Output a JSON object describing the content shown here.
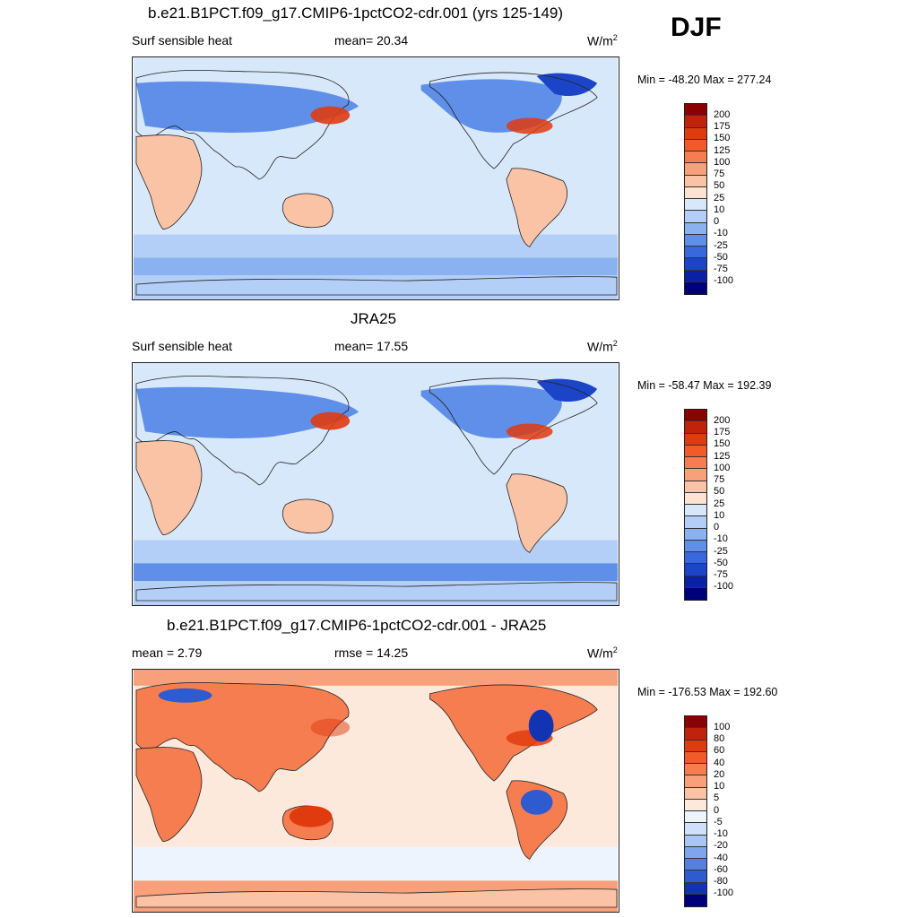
{
  "season": "DJF",
  "panels": [
    {
      "title": "b.e21.B1PCT.f09_g17.CMIP6-1pctCO2-cdr.001 (yrs 125-149)",
      "left_label": "Surf sensible heat",
      "center_label": "mean=  20.34",
      "units": "W/m",
      "units_sup": "2",
      "minmax": "Min = -48.20 Max = 277.24",
      "colorbar": {
        "labels": [
          "200",
          "175",
          "150",
          "125",
          "100",
          "75",
          "50",
          "25",
          "10",
          "0",
          "-10",
          "-25",
          "-50",
          "-75",
          "-100"
        ],
        "colors": [
          "#8b0000",
          "#c1220a",
          "#e03b0f",
          "#f25a2a",
          "#f57d50",
          "#f8a07a",
          "#fbc3a5",
          "#fde3d0",
          "#d7e8fb",
          "#b4cff7",
          "#8ab1f0",
          "#5f8fe8",
          "#3868dc",
          "#1c44c7",
          "#0b21a5",
          "#00007a"
        ]
      },
      "map_style": "model"
    },
    {
      "title": "JRA25",
      "left_label": "Surf sensible heat",
      "center_label": "mean=  17.55",
      "units": "W/m",
      "units_sup": "2",
      "minmax": "Min = -58.47 Max = 192.39",
      "colorbar": {
        "labels": [
          "200",
          "175",
          "150",
          "125",
          "100",
          "75",
          "50",
          "25",
          "10",
          "0",
          "-10",
          "-25",
          "-50",
          "-75",
          "-100"
        ],
        "colors": [
          "#8b0000",
          "#c1220a",
          "#e03b0f",
          "#f25a2a",
          "#f57d50",
          "#f8a07a",
          "#fbc3a5",
          "#fde3d0",
          "#d7e8fb",
          "#b4cff7",
          "#8ab1f0",
          "#5f8fe8",
          "#3868dc",
          "#1c44c7",
          "#0b21a5",
          "#00007a"
        ]
      },
      "map_style": "obs"
    },
    {
      "title": "b.e21.B1PCT.f09_g17.CMIP6-1pctCO2-cdr.001 - JRA25",
      "left_label": "mean =   2.79",
      "center_label": "rmse =  14.25",
      "units": "W/m",
      "units_sup": "2",
      "minmax": "Min = -176.53 Max = 192.60",
      "colorbar": {
        "labels": [
          "100",
          "80",
          "60",
          "40",
          "20",
          "10",
          "5",
          "0",
          "-5",
          "-10",
          "-20",
          "-40",
          "-60",
          "-80",
          "-100"
        ],
        "colors": [
          "#8b0000",
          "#c1220a",
          "#e03b0f",
          "#f25a2a",
          "#f57d50",
          "#f8a07a",
          "#fbc3a5",
          "#fde8dc",
          "#eef4fd",
          "#cfe0fa",
          "#a9c6f4",
          "#7fa6ec",
          "#5580e0",
          "#2f5bd0",
          "#1234b3",
          "#00007a"
        ]
      },
      "map_style": "diff"
    }
  ]
}
